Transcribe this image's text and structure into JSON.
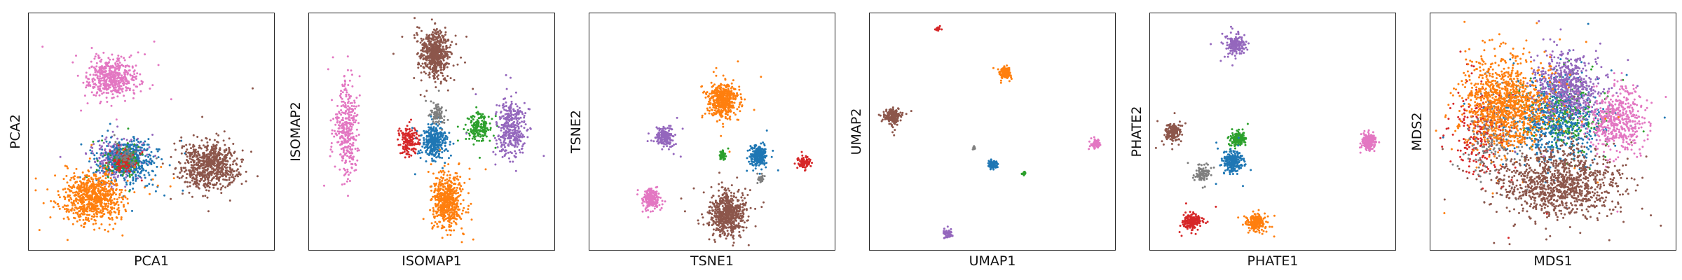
{
  "colors": {
    "c0": "#1f77b4",
    "c1": "#ff7f0e",
    "c2": "#2ca02c",
    "c3": "#d62728",
    "c4": "#9467bd",
    "c5": "#8c564b",
    "c6": "#e377c2",
    "c7": "#7f7f7f"
  },
  "chart_data": [
    {
      "type": "scatter",
      "title": "",
      "xlabel": "PCA1",
      "ylabel": "PCA2",
      "xlim": [
        0,
        100
      ],
      "ylim": [
        0,
        100
      ],
      "grid": false,
      "ticks": false,
      "series": [
        {
          "color_key": "c6",
          "cx": 33,
          "cy": 74,
          "rx": 10,
          "ry": 8,
          "n": 500
        },
        {
          "color_key": "c4",
          "cx": 36,
          "cy": 38,
          "rx": 10,
          "ry": 8,
          "n": 350
        },
        {
          "color_key": "c0",
          "cx": 40,
          "cy": 38,
          "rx": 11,
          "ry": 9,
          "n": 450
        },
        {
          "color_key": "c2",
          "cx": 37,
          "cy": 37,
          "rx": 7,
          "ry": 6,
          "n": 120
        },
        {
          "color_key": "c3",
          "cx": 38,
          "cy": 37,
          "rx": 6,
          "ry": 5,
          "n": 80
        },
        {
          "color_key": "c7",
          "cx": 39,
          "cy": 39,
          "rx": 5,
          "ry": 5,
          "n": 60
        },
        {
          "color_key": "c5",
          "cx": 74,
          "cy": 35,
          "rx": 12,
          "ry": 10,
          "n": 700
        },
        {
          "color_key": "c1",
          "cx": 25,
          "cy": 22,
          "rx": 13,
          "ry": 10,
          "n": 750
        }
      ]
    },
    {
      "type": "scatter",
      "title": "",
      "xlabel": "ISOMAP1",
      "ylabel": "ISOMAP2",
      "xlim": [
        0,
        100
      ],
      "ylim": [
        0,
        100
      ],
      "grid": false,
      "ticks": false,
      "series": [
        {
          "color_key": "c6",
          "cx": 14,
          "cy": 52,
          "rx": 5,
          "ry": 20,
          "n": 350
        },
        {
          "color_key": "c5",
          "cx": 51,
          "cy": 84,
          "rx": 6,
          "ry": 10,
          "n": 600
        },
        {
          "color_key": "c0",
          "cx": 51,
          "cy": 46,
          "rx": 5,
          "ry": 7,
          "n": 350
        },
        {
          "color_key": "c3",
          "cx": 40,
          "cy": 46,
          "rx": 4,
          "ry": 6,
          "n": 150
        },
        {
          "color_key": "c7",
          "cx": 52,
          "cy": 58,
          "rx": 3,
          "ry": 5,
          "n": 80
        },
        {
          "color_key": "c2",
          "cx": 70,
          "cy": 52,
          "rx": 5,
          "ry": 6,
          "n": 180
        },
        {
          "color_key": "c4",
          "cx": 83,
          "cy": 52,
          "rx": 6,
          "ry": 12,
          "n": 350
        },
        {
          "color_key": "c1",
          "cx": 56,
          "cy": 20,
          "rx": 6,
          "ry": 12,
          "n": 550
        }
      ]
    },
    {
      "type": "scatter",
      "title": "",
      "xlabel": "TSNE1",
      "ylabel": "TSNE2",
      "xlim": [
        0,
        100
      ],
      "ylim": [
        0,
        100
      ],
      "grid": false,
      "ticks": false,
      "series": [
        {
          "color_key": "c1",
          "cx": 54,
          "cy": 64,
          "rx": 6,
          "ry": 7,
          "n": 500
        },
        {
          "color_key": "c4",
          "cx": 30,
          "cy": 48,
          "rx": 3.5,
          "ry": 4,
          "n": 200
        },
        {
          "color_key": "c2",
          "cx": 54,
          "cy": 40,
          "rx": 1.5,
          "ry": 2,
          "n": 50
        },
        {
          "color_key": "c0",
          "cx": 69,
          "cy": 40,
          "rx": 3.5,
          "ry": 4.5,
          "n": 250
        },
        {
          "color_key": "c3",
          "cx": 88,
          "cy": 37,
          "rx": 2.5,
          "ry": 2.5,
          "n": 100
        },
        {
          "color_key": "c7",
          "cx": 70,
          "cy": 30,
          "rx": 1.5,
          "ry": 1.5,
          "n": 30
        },
        {
          "color_key": "c6",
          "cx": 24,
          "cy": 21,
          "rx": 3.5,
          "ry": 4,
          "n": 220
        },
        {
          "color_key": "c5",
          "cx": 56,
          "cy": 15,
          "rx": 7,
          "ry": 9,
          "n": 650
        }
      ]
    },
    {
      "type": "scatter",
      "title": "",
      "xlabel": "UMAP1",
      "ylabel": "UMAP2",
      "xlim": [
        0,
        100
      ],
      "ylim": [
        0,
        100
      ],
      "grid": false,
      "ticks": false,
      "series": [
        {
          "color_key": "c3",
          "cx": 27,
          "cy": 95,
          "rx": 1.2,
          "ry": 1,
          "n": 25
        },
        {
          "color_key": "c1",
          "cx": 55,
          "cy": 76,
          "rx": 2.5,
          "ry": 2.5,
          "n": 150
        },
        {
          "color_key": "c5",
          "cx": 8,
          "cy": 57,
          "rx": 3.2,
          "ry": 3,
          "n": 200
        },
        {
          "color_key": "c6",
          "cx": 93,
          "cy": 45,
          "rx": 1.8,
          "ry": 1.5,
          "n": 60
        },
        {
          "color_key": "c7",
          "cx": 42,
          "cy": 43,
          "rx": 0.7,
          "ry": 0.7,
          "n": 10
        },
        {
          "color_key": "c0",
          "cx": 50,
          "cy": 36,
          "rx": 2,
          "ry": 1.8,
          "n": 80
        },
        {
          "color_key": "c2",
          "cx": 63,
          "cy": 32,
          "rx": 1,
          "ry": 0.7,
          "n": 15
        },
        {
          "color_key": "c4",
          "cx": 31,
          "cy": 6,
          "rx": 2,
          "ry": 2,
          "n": 60
        }
      ]
    },
    {
      "type": "scatter",
      "title": "",
      "xlabel": "PHATE1",
      "ylabel": "PHATE2",
      "xlim": [
        0,
        100
      ],
      "ylim": [
        0,
        100
      ],
      "grid": false,
      "ticks": false,
      "series": [
        {
          "color_key": "c4",
          "cx": 34,
          "cy": 88,
          "rx": 3.5,
          "ry": 4,
          "n": 200
        },
        {
          "color_key": "c5",
          "cx": 8,
          "cy": 50,
          "rx": 3,
          "ry": 3.5,
          "n": 180
        },
        {
          "color_key": "c2",
          "cx": 35,
          "cy": 47,
          "rx": 3,
          "ry": 3,
          "n": 150
        },
        {
          "color_key": "c0",
          "cx": 33,
          "cy": 37,
          "rx": 4,
          "ry": 4,
          "n": 250
        },
        {
          "color_key": "c7",
          "cx": 20,
          "cy": 32,
          "rx": 3,
          "ry": 3,
          "n": 100
        },
        {
          "color_key": "c6",
          "cx": 90,
          "cy": 46,
          "rx": 3,
          "ry": 3.5,
          "n": 180
        },
        {
          "color_key": "c3",
          "cx": 16,
          "cy": 11,
          "rx": 4,
          "ry": 3.5,
          "n": 200
        },
        {
          "color_key": "c1",
          "cx": 43,
          "cy": 11,
          "rx": 4,
          "ry": 3.5,
          "n": 200
        }
      ]
    },
    {
      "type": "scatter",
      "title": "",
      "xlabel": "MDS1",
      "ylabel": "MDS2",
      "xlim": [
        0,
        100
      ],
      "ylim": [
        0,
        100
      ],
      "grid": false,
      "ticks": false,
      "series": [
        {
          "color_key": "c3",
          "cx": 20,
          "cy": 50,
          "rx": 12,
          "ry": 20,
          "n": 250
        },
        {
          "color_key": "c7",
          "cx": 25,
          "cy": 48,
          "rx": 12,
          "ry": 18,
          "n": 200
        },
        {
          "color_key": "c2",
          "cx": 55,
          "cy": 58,
          "rx": 15,
          "ry": 15,
          "n": 300
        },
        {
          "color_key": "c0",
          "cx": 50,
          "cy": 55,
          "rx": 20,
          "ry": 18,
          "n": 600
        },
        {
          "color_key": "c4",
          "cx": 55,
          "cy": 70,
          "rx": 14,
          "ry": 14,
          "n": 600
        },
        {
          "color_key": "c6",
          "cx": 77,
          "cy": 55,
          "rx": 12,
          "ry": 14,
          "n": 500
        },
        {
          "color_key": "c1",
          "cx": 30,
          "cy": 62,
          "rx": 18,
          "ry": 20,
          "n": 1100
        },
        {
          "color_key": "c5",
          "cx": 52,
          "cy": 28,
          "rx": 24,
          "ry": 15,
          "n": 1100
        }
      ]
    }
  ]
}
